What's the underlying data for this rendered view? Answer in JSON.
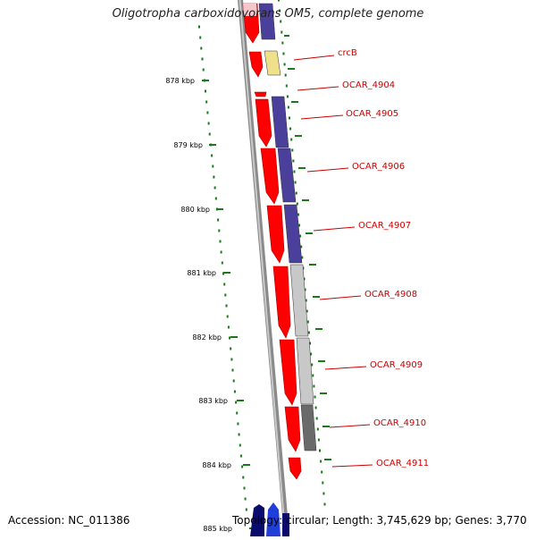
{
  "title": "Oligotropha carboxidovorans OM5, complete genome",
  "footer": {
    "accession": "Accession: NC_011386",
    "topology": "Topology: circular; Length: 3,745,629 bp; Genes: 3,770"
  },
  "ruler": {
    "unit": "kbp",
    "ticks": [
      "878 kbp",
      "879 kbp",
      "880 kbp",
      "881 kbp",
      "882 kbp",
      "883 kbp",
      "884 kbp",
      "885 kbp"
    ]
  },
  "gene_labels": [
    "crcB",
    "OCAR_4904",
    "OCAR_4905",
    "OCAR_4906",
    "OCAR_4907",
    "OCAR_4908",
    "OCAR_4909",
    "OCAR_4910",
    "OCAR_4911"
  ],
  "colors": {
    "forward_strand": "#ff0000",
    "track_purple": "#4a3f9a",
    "track_yellow": "#efe08a",
    "track_light_gray": "#c8c8c8",
    "track_dark_gray": "#6a6a6a",
    "backbone": "#8a8a8a",
    "ruler_ticks": "#1a7a1a",
    "label_text": "#cc0000"
  }
}
